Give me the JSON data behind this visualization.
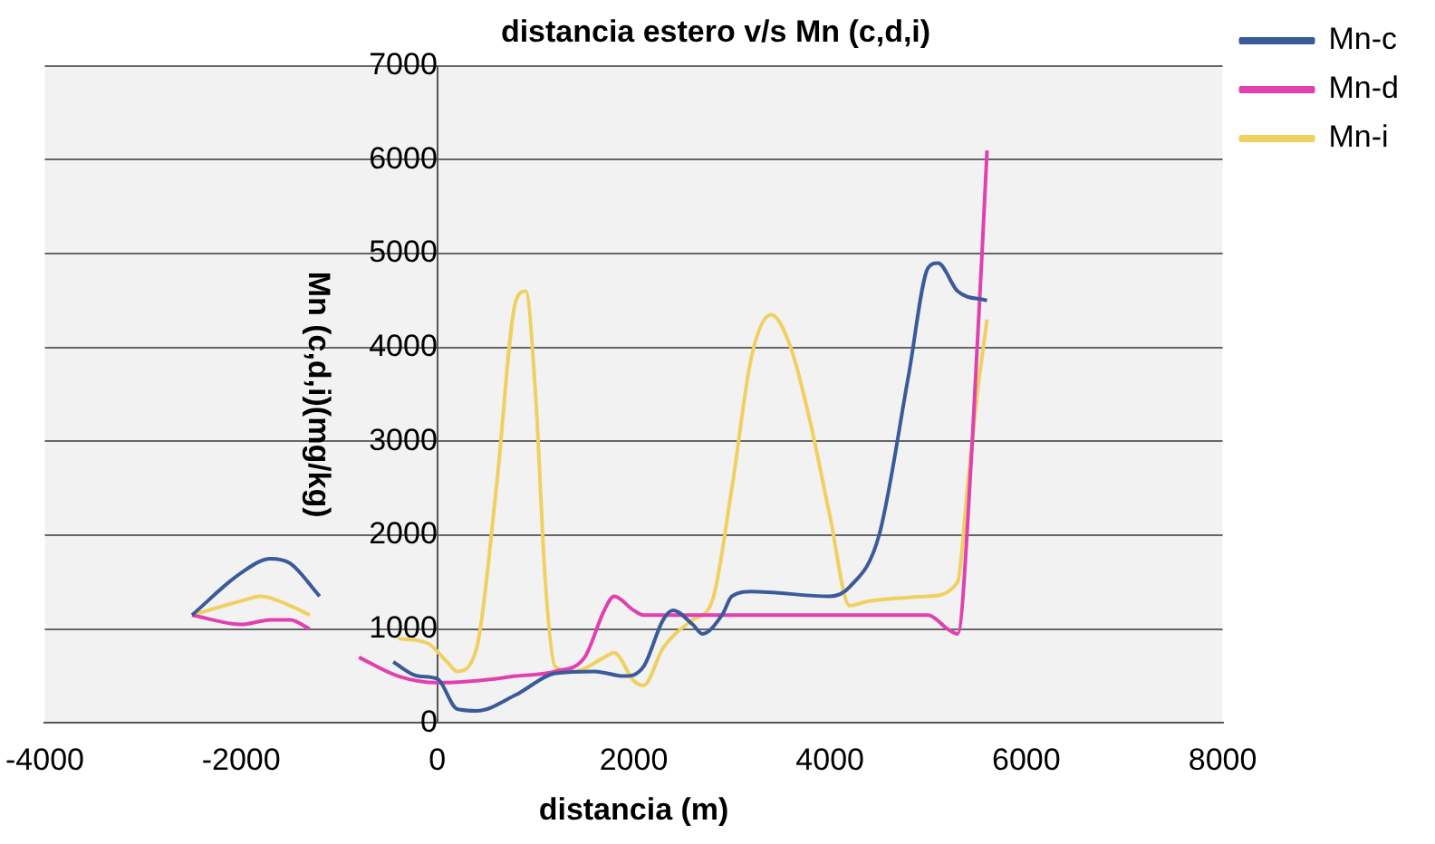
{
  "chart_data": {
    "type": "line",
    "title": "distancia estero v/s Mn (c,d,i)",
    "xlabel": "distancia (m)",
    "ylabel": "Mn (c,d,i)(mg/kg)",
    "xlim": [
      -4000,
      8000
    ],
    "xticks": [
      -4000,
      -2000,
      0,
      2000,
      4000,
      6000,
      8000
    ],
    "ylim": [
      0,
      7000
    ],
    "yticks": [
      0,
      1000,
      2000,
      3000,
      4000,
      5000,
      6000,
      7000
    ],
    "grid": "y",
    "legend": "right",
    "marker": "none",
    "line_style": "solid",
    "series": [
      {
        "name": "Mn-c",
        "color": "#3a5a9a",
        "x": [
          -2500,
          -2000,
          -1700,
          -1500,
          -1200,
          -800,
          -450,
          -200,
          0,
          200,
          400,
          800,
          1200,
          1600,
          1900,
          2100,
          2300,
          2400,
          2600,
          2700,
          2900,
          3000,
          3200,
          4000,
          4200,
          4500,
          4800,
          5000,
          5100,
          5300,
          5600
        ],
        "values": [
          1150,
          1600,
          1750,
          1700,
          1350,
          null,
          650,
          500,
          470,
          150,
          130,
          300,
          530,
          550,
          500,
          600,
          1100,
          1200,
          1050,
          950,
          1150,
          1350,
          1400,
          1350,
          1450,
          2000,
          3700,
          4850,
          4900,
          4600,
          4500
        ]
      },
      {
        "name": "Mn-d",
        "color": "#e040b0",
        "x": [
          -2500,
          -2000,
          -1700,
          -1500,
          -1300,
          -1000,
          -800,
          -400,
          0,
          400,
          800,
          1200,
          1500,
          1700,
          1800,
          2000,
          2100,
          4000,
          5000,
          5200,
          5300,
          5450,
          5600
        ],
        "values": [
          1150,
          1050,
          1100,
          1100,
          1000,
          null,
          700,
          500,
          430,
          450,
          500,
          550,
          700,
          1200,
          1350,
          1200,
          1150,
          1150,
          1150,
          1000,
          950,
          3000,
          6100
        ]
      },
      {
        "name": "Mn-i",
        "color": "#f0d060",
        "x": [
          -2500,
          -2000,
          -1800,
          -1500,
          -1300,
          -900,
          -400,
          -100,
          100,
          200,
          400,
          600,
          800,
          900,
          1000,
          1100,
          1200,
          1400,
          1700,
          1800,
          2000,
          2100,
          2300,
          2600,
          2800,
          3000,
          3200,
          3400,
          3600,
          3800,
          4000,
          4200,
          4400,
          5000,
          5300,
          5400,
          5500,
          5600
        ],
        "values": [
          1150,
          1300,
          1350,
          1250,
          1150,
          null,
          900,
          850,
          650,
          550,
          800,
          2500,
          4500,
          4600,
          3500,
          1500,
          600,
          550,
          700,
          750,
          450,
          400,
          800,
          1100,
          1300,
          2500,
          3900,
          4350,
          4000,
          3200,
          2200,
          1250,
          1300,
          1350,
          1500,
          2500,
          3500,
          4300
        ]
      }
    ]
  }
}
